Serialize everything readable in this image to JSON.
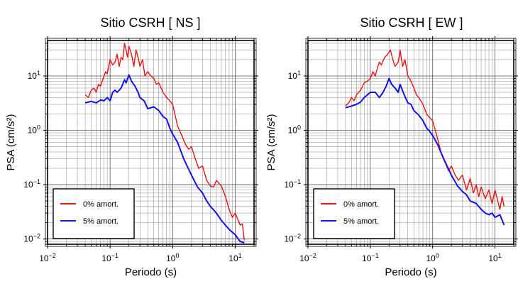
{
  "chart_data": [
    {
      "type": "line",
      "title": "Sitio CSRH [ NS ]",
      "xlabel": "Periodo (s)",
      "ylabel": "PSA (cm/s²)",
      "xscale": "log",
      "yscale": "log",
      "xlim": [
        0.01,
        20
      ],
      "ylim": [
        0.008,
        45
      ],
      "xticks": [
        {
          "value": 0.01,
          "base": "10",
          "exp": "−2"
        },
        {
          "value": 0.1,
          "base": "10",
          "exp": "−1"
        },
        {
          "value": 1,
          "base": "10",
          "exp": "0"
        },
        {
          "value": 10,
          "base": "10",
          "exp": "1"
        }
      ],
      "yticks": [
        {
          "value": 0.01,
          "base": "10",
          "exp": "−2"
        },
        {
          "value": 0.1,
          "base": "10",
          "exp": "−1"
        },
        {
          "value": 1,
          "base": "10",
          "exp": "0"
        },
        {
          "value": 10,
          "base": "10",
          "exp": "1"
        }
      ],
      "grid": true,
      "legend_position": "bottom-left",
      "series": [
        {
          "name": "0% amort.",
          "color": "#ee1111",
          "x": [
            0.04,
            0.045,
            0.05,
            0.055,
            0.06,
            0.065,
            0.07,
            0.08,
            0.085,
            0.09,
            0.1,
            0.11,
            0.12,
            0.13,
            0.14,
            0.15,
            0.16,
            0.17,
            0.18,
            0.19,
            0.2,
            0.22,
            0.24,
            0.26,
            0.28,
            0.3,
            0.33,
            0.36,
            0.4,
            0.45,
            0.5,
            0.55,
            0.6,
            0.7,
            0.8,
            0.9,
            1.0,
            1.2,
            1.4,
            1.6,
            1.8,
            2.0,
            2.3,
            2.6,
            3.0,
            3.5,
            4.0,
            4.5,
            5.0,
            6.0,
            7.0,
            8.0,
            9.0,
            10.0,
            12.0,
            13.0,
            14.0
          ],
          "y": [
            4.5,
            4.0,
            5.5,
            6.0,
            5.0,
            7.0,
            6.5,
            10.0,
            12.0,
            11.0,
            20.0,
            16.0,
            18.0,
            25.0,
            15.0,
            22.0,
            20.0,
            40.0,
            30.0,
            22.0,
            35.0,
            25.0,
            15.0,
            30.0,
            22.0,
            15.0,
            20.0,
            10.0,
            12.0,
            10.0,
            9.0,
            7.0,
            7.5,
            5.0,
            4.0,
            3.5,
            3.0,
            1.2,
            0.8,
            0.55,
            0.45,
            0.5,
            0.3,
            0.2,
            0.22,
            0.12,
            0.095,
            0.09,
            0.12,
            0.095,
            0.06,
            0.035,
            0.025,
            0.03,
            0.018,
            0.019,
            0.0095
          ]
        },
        {
          "name": "5% amort.",
          "color": "#1111ee",
          "x": [
            0.04,
            0.05,
            0.06,
            0.07,
            0.08,
            0.09,
            0.1,
            0.11,
            0.12,
            0.13,
            0.15,
            0.17,
            0.18,
            0.2,
            0.22,
            0.25,
            0.28,
            0.3,
            0.35,
            0.4,
            0.5,
            0.6,
            0.7,
            0.8,
            0.9,
            1.0,
            1.2,
            1.5,
            2.0,
            2.5,
            3.0,
            3.5,
            4.0,
            5.0,
            6.0,
            8.0,
            10.0,
            12.0,
            14.0
          ],
          "y": [
            3.2,
            3.4,
            3.2,
            3.6,
            3.5,
            4.0,
            3.5,
            5.0,
            5.5,
            5.0,
            6.0,
            8.5,
            7.5,
            10.5,
            8.0,
            6.5,
            5.0,
            4.0,
            3.5,
            2.5,
            2.7,
            2.3,
            1.8,
            1.6,
            1.1,
            0.85,
            0.6,
            0.3,
            0.15,
            0.09,
            0.07,
            0.05,
            0.04,
            0.03,
            0.022,
            0.015,
            0.012,
            0.009,
            0.0085
          ]
        }
      ]
    },
    {
      "type": "line",
      "title": "Sitio CSRH [ EW ]",
      "xlabel": "Periodo (s)",
      "ylabel": "PSA (cm/s²)",
      "xscale": "log",
      "yscale": "log",
      "xlim": [
        0.01,
        20
      ],
      "ylim": [
        0.008,
        45
      ],
      "xticks": [
        {
          "value": 0.01,
          "base": "10",
          "exp": "−2"
        },
        {
          "value": 0.1,
          "base": "10",
          "exp": "−1"
        },
        {
          "value": 1,
          "base": "10",
          "exp": "0"
        },
        {
          "value": 10,
          "base": "10",
          "exp": "1"
        }
      ],
      "yticks": [
        {
          "value": 0.01,
          "base": "10",
          "exp": "−2"
        },
        {
          "value": 0.1,
          "base": "10",
          "exp": "−1"
        },
        {
          "value": 1,
          "base": "10",
          "exp": "0"
        },
        {
          "value": 10,
          "base": "10",
          "exp": "1"
        }
      ],
      "grid": true,
      "legend_position": "bottom-left",
      "series": [
        {
          "name": "0% amort.",
          "color": "#ee1111",
          "x": [
            0.04,
            0.045,
            0.05,
            0.055,
            0.06,
            0.065,
            0.07,
            0.08,
            0.09,
            0.1,
            0.11,
            0.12,
            0.13,
            0.14,
            0.15,
            0.17,
            0.19,
            0.21,
            0.23,
            0.25,
            0.28,
            0.3,
            0.33,
            0.36,
            0.4,
            0.45,
            0.5,
            0.55,
            0.6,
            0.7,
            0.8,
            0.9,
            1.0,
            1.2,
            1.4,
            1.6,
            1.8,
            2.0,
            2.3,
            2.6,
            3.0,
            3.5,
            4.0,
            4.5,
            5.0,
            5.5,
            6.0,
            7.0,
            8.0,
            9.0,
            10.0,
            12.0,
            13.0,
            14.0
          ],
          "y": [
            2.8,
            3.2,
            4.0,
            3.5,
            4.5,
            5.0,
            5.5,
            7.5,
            8.0,
            9.0,
            12.0,
            10.0,
            14.0,
            18.0,
            16.0,
            22.0,
            25.0,
            30.0,
            20.0,
            15.0,
            18.0,
            30.0,
            15.0,
            20.0,
            10.0,
            8.0,
            6.0,
            4.5,
            4.0,
            3.0,
            2.0,
            1.7,
            1.5,
            0.7,
            0.35,
            0.25,
            0.18,
            0.22,
            0.15,
            0.12,
            0.15,
            0.08,
            0.13,
            0.07,
            0.1,
            0.06,
            0.09,
            0.055,
            0.08,
            0.045,
            0.08,
            0.035,
            0.06,
            0.04
          ]
        },
        {
          "name": "5% amort.",
          "color": "#1111ee",
          "x": [
            0.04,
            0.05,
            0.06,
            0.07,
            0.08,
            0.1,
            0.12,
            0.14,
            0.16,
            0.18,
            0.2,
            0.22,
            0.25,
            0.28,
            0.3,
            0.35,
            0.4,
            0.45,
            0.5,
            0.6,
            0.7,
            0.8,
            0.9,
            1.0,
            1.2,
            1.5,
            2.0,
            2.5,
            3.0,
            3.5,
            4.0,
            5.0,
            6.0,
            7.0,
            8.0,
            9.0,
            10.0,
            12.0,
            14.0
          ],
          "y": [
            2.6,
            2.8,
            3.0,
            3.3,
            4.0,
            5.0,
            5.0,
            4.0,
            5.0,
            6.5,
            9.0,
            7.0,
            6.0,
            5.0,
            7.0,
            4.5,
            3.2,
            3.0,
            2.3,
            1.9,
            1.5,
            1.1,
            0.95,
            0.8,
            0.55,
            0.3,
            0.15,
            0.095,
            0.075,
            0.065,
            0.05,
            0.045,
            0.035,
            0.03,
            0.028,
            0.03,
            0.025,
            0.028,
            0.018
          ]
        }
      ]
    }
  ]
}
